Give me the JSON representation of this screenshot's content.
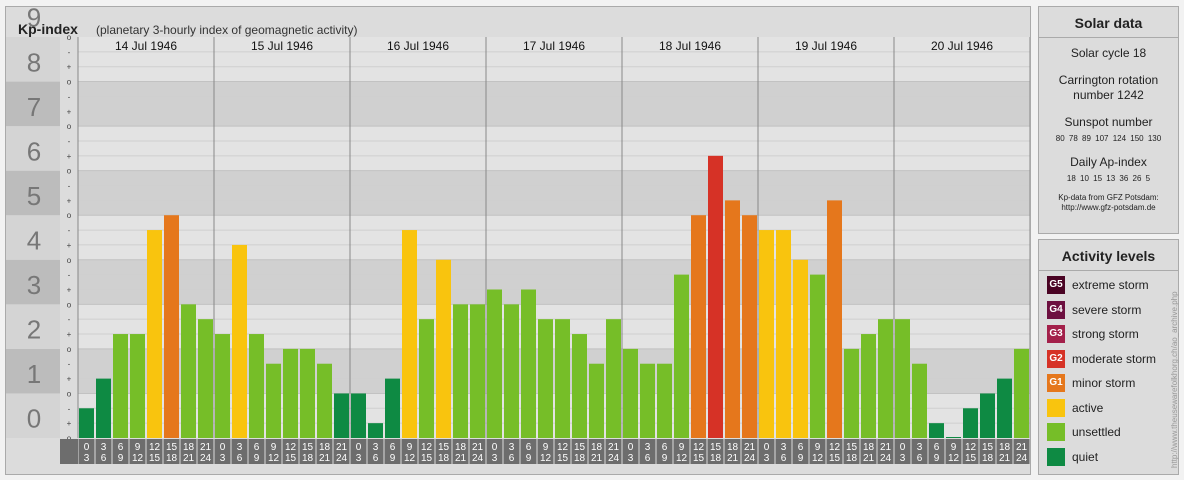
{
  "header": {
    "title": "Kp-index",
    "subtitle": "(planetary 3-hourly index of geomagnetic activity)"
  },
  "chart_data": {
    "type": "bar",
    "title": "Kp-index",
    "subtitle": "(planetary 3-hourly index of geomagnetic activity)",
    "ylim": [
      0,
      9
    ],
    "y_ticks": [
      "0",
      "1",
      "2",
      "3",
      "4",
      "5",
      "6",
      "7",
      "8",
      "9"
    ],
    "y_minor_ticks": [
      "-",
      "o",
      "+"
    ],
    "days": [
      "14 Jul 1946",
      "15 Jul 1946",
      "16 Jul 1946",
      "17 Jul 1946",
      "18 Jul 1946",
      "19 Jul 1946",
      "20 Jul 1946"
    ],
    "intervals": [
      [
        "0",
        "3"
      ],
      [
        "3",
        "6"
      ],
      [
        "6",
        "9"
      ],
      [
        "9",
        "12"
      ],
      [
        "12",
        "15"
      ],
      [
        "15",
        "18"
      ],
      [
        "18",
        "21"
      ],
      [
        "21",
        "24"
      ]
    ],
    "values": [
      [
        0.667,
        1.333,
        2.333,
        2.333,
        4.667,
        5.0,
        3.0,
        2.667
      ],
      [
        2.333,
        4.333,
        2.333,
        1.667,
        2.0,
        2.0,
        1.667,
        1.0
      ],
      [
        1.0,
        0.333,
        1.333,
        4.667,
        2.667,
        4.0,
        3.0,
        3.0
      ],
      [
        3.333,
        3.0,
        3.333,
        2.667,
        2.667,
        2.333,
        1.667,
        2.667
      ],
      [
        2.0,
        1.667,
        1.667,
        3.667,
        5.0,
        6.333,
        5.333,
        5.0
      ],
      [
        4.667,
        4.667,
        4.0,
        3.667,
        5.333,
        2.0,
        2.333,
        2.667
      ],
      [
        2.667,
        1.667,
        0.333,
        0.0,
        0.667,
        1.0,
        1.333,
        2.0
      ]
    ],
    "grid": true,
    "level_colors": {
      "quiet": "#0e8a43",
      "unsettled": "#76be28",
      "active": "#f9c40e",
      "G1": "#e5771c",
      "G2": "#d63226",
      "G3": "#a3204a",
      "G4": "#6d1040",
      "G5": "#4a0424"
    }
  },
  "solar": {
    "title": "Solar data",
    "cycle": "Solar cycle 18",
    "carrington_line1": "Carrington rotation",
    "carrington_line2": "number 1242",
    "sunspot_title": "Sunspot number",
    "sunspot_values": "80 78 89 107 124 150 130",
    "ap_title": "Daily Ap-index",
    "ap_values": "18 10 15 13 36 26 5",
    "source_line1": "Kp-data from GFZ Potsdam:",
    "source_line2": "http://www.gfz-potsdam.de"
  },
  "activity": {
    "title": "Activity levels",
    "levels": [
      {
        "badge": "G5",
        "label": "extreme storm",
        "color": "#4a0424"
      },
      {
        "badge": "G4",
        "label": "severe storm",
        "color": "#6d1040"
      },
      {
        "badge": "G3",
        "label": "strong storm",
        "color": "#a3204a"
      },
      {
        "badge": "G2",
        "label": "moderate storm",
        "color": "#d63226"
      },
      {
        "badge": "G1",
        "label": "minor storm",
        "color": "#e5771c"
      },
      {
        "badge": "",
        "label": "active",
        "color": "#f9c40e"
      },
      {
        "badge": "",
        "label": "unsettled",
        "color": "#76be28"
      },
      {
        "badge": "",
        "label": "quiet",
        "color": "#0e8a43"
      }
    ]
  },
  "credit": "http://www.theusewarefolkhorg.ch/ao_archive.php"
}
